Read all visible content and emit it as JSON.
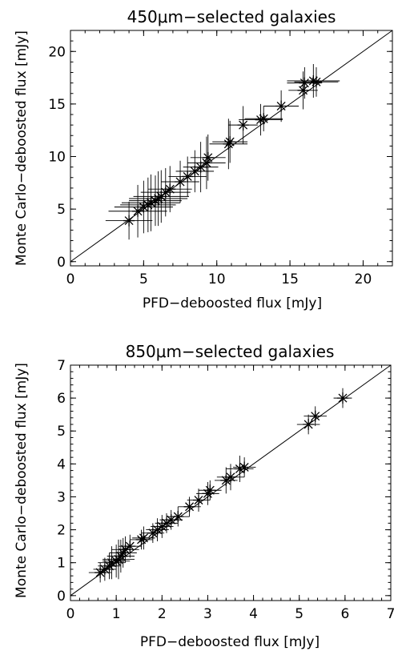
{
  "chart_data": [
    {
      "type": "scatter",
      "title": "450μm−selected galaxies",
      "xlabel": "PFD−deboosted flux [mJy]",
      "ylabel": "Monte Carlo−deboosted flux [mJy]",
      "xlim": [
        0,
        22
      ],
      "ylim": [
        -0.4,
        22
      ],
      "xticks": [
        0,
        5,
        10,
        15,
        20
      ],
      "yticks": [
        0,
        5,
        10,
        15,
        20
      ],
      "one_to_one_line": true,
      "marker": "asterisk",
      "points": [
        {
          "x": 4.0,
          "y": 3.9,
          "xerr": 1.6,
          "yerr": 1.8
        },
        {
          "x": 4.6,
          "y": 4.8,
          "xerr": 2.0,
          "yerr": 2.5
        },
        {
          "x": 5.0,
          "y": 5.2,
          "xerr": 2.0,
          "yerr": 2.5
        },
        {
          "x": 5.3,
          "y": 5.4,
          "xerr": 1.9,
          "yerr": 2.6
        },
        {
          "x": 5.5,
          "y": 5.6,
          "xerr": 2.0,
          "yerr": 2.7
        },
        {
          "x": 5.8,
          "y": 5.8,
          "xerr": 1.8,
          "yerr": 2.4
        },
        {
          "x": 6.0,
          "y": 6.0,
          "xerr": 2.0,
          "yerr": 2.6
        },
        {
          "x": 6.2,
          "y": 6.2,
          "xerr": 1.9,
          "yerr": 2.5
        },
        {
          "x": 6.5,
          "y": 6.6,
          "xerr": 1.7,
          "yerr": 2.3
        },
        {
          "x": 6.8,
          "y": 6.9,
          "xerr": 1.5,
          "yerr": 2.2
        },
        {
          "x": 7.5,
          "y": 7.6,
          "xerr": 1.3,
          "yerr": 2.0
        },
        {
          "x": 8.0,
          "y": 8.1,
          "xerr": 1.3,
          "yerr": 1.9
        },
        {
          "x": 8.5,
          "y": 8.6,
          "xerr": 1.3,
          "yerr": 2.0
        },
        {
          "x": 8.9,
          "y": 9.0,
          "xerr": 1.2,
          "yerr": 2.4
        },
        {
          "x": 9.3,
          "y": 9.4,
          "xerr": 1.3,
          "yerr": 2.5
        },
        {
          "x": 9.4,
          "y": 9.9,
          "xerr": 1.2,
          "yerr": 2.2
        },
        {
          "x": 10.8,
          "y": 11.2,
          "xerr": 1.3,
          "yerr": 2.4
        },
        {
          "x": 10.9,
          "y": 11.4,
          "xerr": 1.2,
          "yerr": 2.0
        },
        {
          "x": 11.8,
          "y": 13.0,
          "xerr": 1.0,
          "yerr": 1.8
        },
        {
          "x": 13.0,
          "y": 13.5,
          "xerr": 1.5,
          "yerr": 1.5
        },
        {
          "x": 13.2,
          "y": 13.6,
          "xerr": 1.3,
          "yerr": 1.2
        },
        {
          "x": 14.4,
          "y": 14.8,
          "xerr": 1.2,
          "yerr": 1.5
        },
        {
          "x": 15.9,
          "y": 16.3,
          "xerr": 1.0,
          "yerr": 1.8
        },
        {
          "x": 16.0,
          "y": 17.0,
          "xerr": 1.2,
          "yerr": 1.5
        },
        {
          "x": 16.6,
          "y": 17.2,
          "xerr": 1.8,
          "yerr": 1.6
        },
        {
          "x": 16.8,
          "y": 17.1,
          "xerr": 1.5,
          "yerr": 1.4
        }
      ]
    },
    {
      "type": "scatter",
      "title": "850μm−selected galaxies",
      "xlabel": "PFD−deboosted flux [mJy]",
      "ylabel": "Monte Carlo−deboosted flux [mJy]",
      "xlim": [
        0,
        7
      ],
      "ylim": [
        -0.15,
        7
      ],
      "xticks": [
        0,
        1,
        2,
        3,
        4,
        5,
        6,
        7
      ],
      "yticks": [
        0,
        1,
        2,
        3,
        4,
        5,
        6,
        7
      ],
      "one_to_one_line": true,
      "marker": "asterisk",
      "points": [
        {
          "x": 0.65,
          "y": 0.7,
          "xerr": 0.25,
          "yerr": 0.3
        },
        {
          "x": 0.75,
          "y": 0.8,
          "xerr": 0.25,
          "yerr": 0.35
        },
        {
          "x": 0.85,
          "y": 0.9,
          "xerr": 0.25,
          "yerr": 0.4
        },
        {
          "x": 0.9,
          "y": 1.0,
          "xerr": 0.3,
          "yerr": 0.5
        },
        {
          "x": 1.0,
          "y": 1.05,
          "xerr": 0.3,
          "yerr": 0.5
        },
        {
          "x": 1.05,
          "y": 1.1,
          "xerr": 0.35,
          "yerr": 0.6
        },
        {
          "x": 1.1,
          "y": 1.2,
          "xerr": 0.3,
          "yerr": 0.5
        },
        {
          "x": 1.15,
          "y": 1.3,
          "xerr": 0.3,
          "yerr": 0.45
        },
        {
          "x": 1.2,
          "y": 1.4,
          "xerr": 0.3,
          "yerr": 0.4
        },
        {
          "x": 1.3,
          "y": 1.5,
          "xerr": 0.25,
          "yerr": 0.35
        },
        {
          "x": 1.55,
          "y": 1.7,
          "xerr": 0.25,
          "yerr": 0.3
        },
        {
          "x": 1.6,
          "y": 1.75,
          "xerr": 0.25,
          "yerr": 0.35
        },
        {
          "x": 1.8,
          "y": 1.9,
          "xerr": 0.25,
          "yerr": 0.3
        },
        {
          "x": 1.9,
          "y": 2.0,
          "xerr": 0.25,
          "yerr": 0.35
        },
        {
          "x": 2.0,
          "y": 2.1,
          "xerr": 0.25,
          "yerr": 0.35
        },
        {
          "x": 2.1,
          "y": 2.2,
          "xerr": 0.25,
          "yerr": 0.3
        },
        {
          "x": 2.2,
          "y": 2.3,
          "xerr": 0.25,
          "yerr": 0.3
        },
        {
          "x": 2.35,
          "y": 2.4,
          "xerr": 0.25,
          "yerr": 0.3
        },
        {
          "x": 2.6,
          "y": 2.7,
          "xerr": 0.25,
          "yerr": 0.3
        },
        {
          "x": 2.8,
          "y": 2.9,
          "xerr": 0.25,
          "yerr": 0.35
        },
        {
          "x": 3.0,
          "y": 3.1,
          "xerr": 0.25,
          "yerr": 0.35
        },
        {
          "x": 3.05,
          "y": 3.2,
          "xerr": 0.25,
          "yerr": 0.3
        },
        {
          "x": 3.4,
          "y": 3.5,
          "xerr": 0.25,
          "yerr": 0.4
        },
        {
          "x": 3.5,
          "y": 3.6,
          "xerr": 0.3,
          "yerr": 0.4
        },
        {
          "x": 3.7,
          "y": 3.85,
          "xerr": 0.3,
          "yerr": 0.4
        },
        {
          "x": 3.8,
          "y": 3.9,
          "xerr": 0.25,
          "yerr": 0.3
        },
        {
          "x": 5.2,
          "y": 5.2,
          "xerr": 0.25,
          "yerr": 0.3
        },
        {
          "x": 5.35,
          "y": 5.45,
          "xerr": 0.25,
          "yerr": 0.3
        },
        {
          "x": 5.95,
          "y": 6.0,
          "xerr": 0.2,
          "yerr": 0.3
        }
      ]
    }
  ]
}
